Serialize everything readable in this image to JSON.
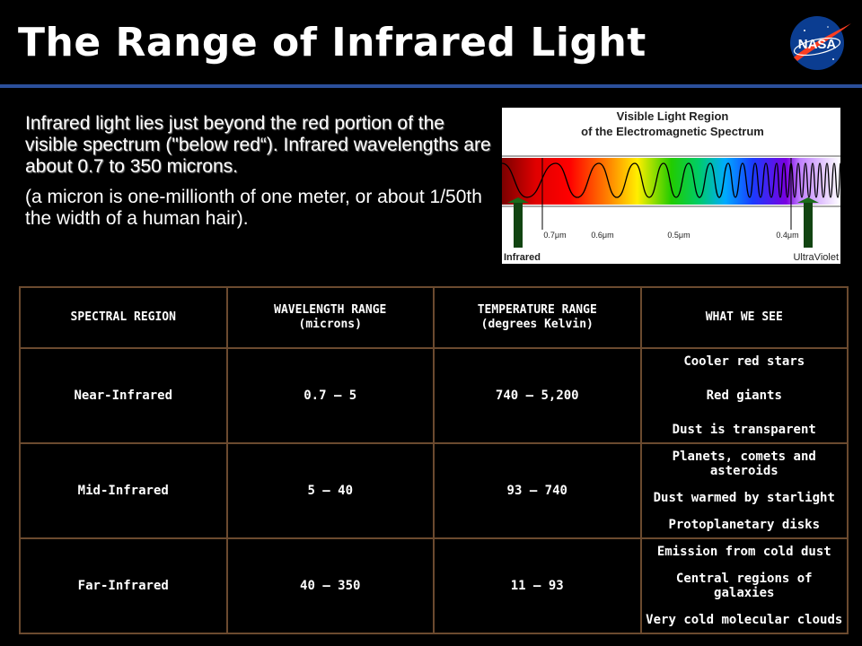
{
  "title": "The Range of Infrared Light",
  "logo": {
    "text": "NASA",
    "icon": "nasa-meatball-logo",
    "colors": {
      "blue": "#0b3d91",
      "red": "#fc3d21"
    }
  },
  "intro": {
    "paragraph1": "Infrared light lies just beyond the red portion of the visible spectrum (\"below red“). Infrared wavelengths are about 0.7 to 350 microns.",
    "paragraph2": "(a micron is one-millionth of one meter, or about 1/50th the width of a human hair)."
  },
  "spectrum_figure": {
    "title_line1": "Visible Light Region",
    "title_line2": "of the Electromagnetic Spectrum",
    "ticks": [
      "0.7μm",
      "0.6μm",
      "0.5μm",
      "0.4μm"
    ],
    "left_label": "Infrared",
    "right_label": "UltraViolet"
  },
  "table": {
    "headers": [
      {
        "line1": "SPECTRAL REGION",
        "line2": ""
      },
      {
        "line1": "WAVELENGTH RANGE",
        "line2": "(microns)"
      },
      {
        "line1": "TEMPERATURE RANGE",
        "line2": "(degrees Kelvin)"
      },
      {
        "line1": "WHAT WE SEE",
        "line2": ""
      }
    ],
    "rows": [
      {
        "region": "Near-Infrared",
        "wavelength": "0.7 – 5",
        "temperature": "740 – 5,200",
        "see": [
          "Cooler red stars",
          "Red giants",
          "Dust is transparent"
        ]
      },
      {
        "region": "Mid-Infrared",
        "wavelength": "5 – 40",
        "temperature": "93 – 740",
        "see": [
          "Planets, comets and asteroids",
          "Dust warmed by starlight",
          "Protoplanetary disks"
        ]
      },
      {
        "region": "Far-Infrared",
        "wavelength": "40 – 350",
        "temperature": "11 – 93",
        "see": [
          "Emission from cold dust",
          "Central regions of galaxies",
          "Very cold molecular clouds"
        ]
      }
    ]
  }
}
